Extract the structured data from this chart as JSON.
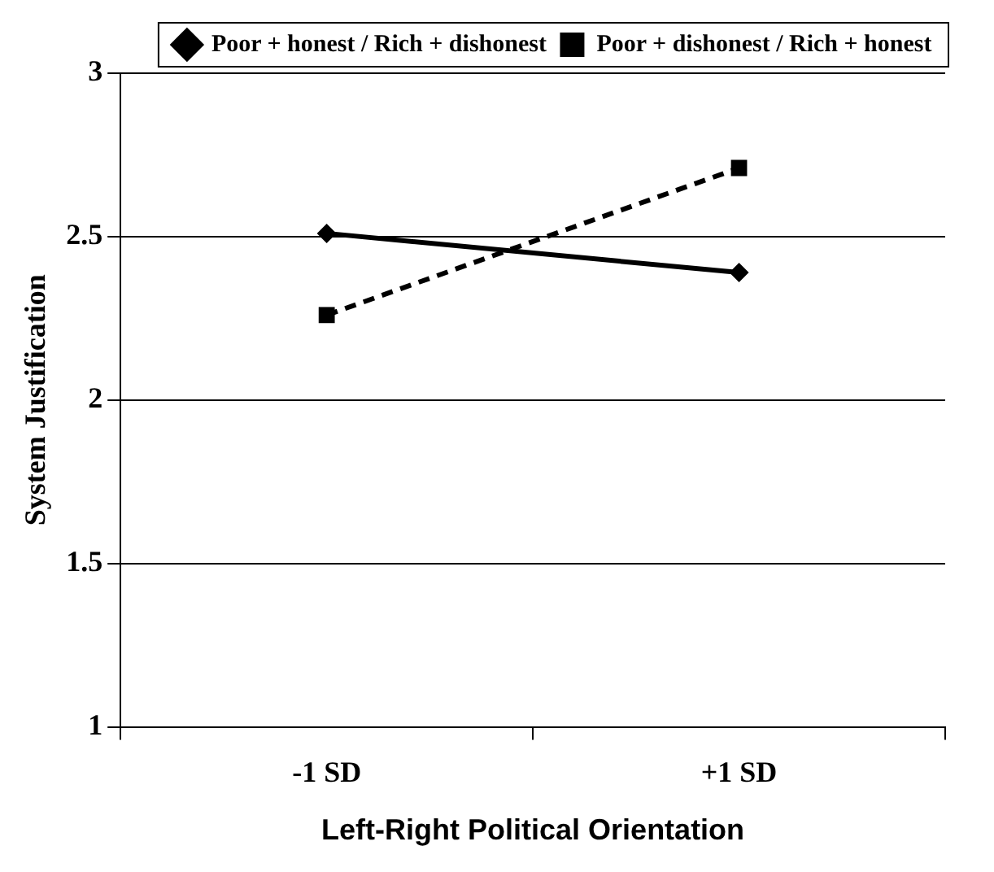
{
  "chart_data": {
    "type": "line",
    "xlabel": "Left-Right Political Orientation",
    "ylabel": "System Justification",
    "categories": [
      "-1 SD",
      "+1 SD"
    ],
    "series": [
      {
        "name": "Poor + honest / Rich + dishonest",
        "color": "#000000",
        "values": [
          2.51,
          2.39
        ],
        "marker": "diamond",
        "line_style": "solid"
      },
      {
        "name": "Poor + dishonest / Rich + honest",
        "color": "#000000",
        "values": [
          2.26,
          2.71
        ],
        "marker": "square",
        "line_style": "dashed"
      }
    ],
    "ylim": [
      1,
      3
    ],
    "yticks": [
      1,
      1.5,
      2,
      2.5,
      3
    ],
    "grid": "y",
    "legend": "top"
  }
}
